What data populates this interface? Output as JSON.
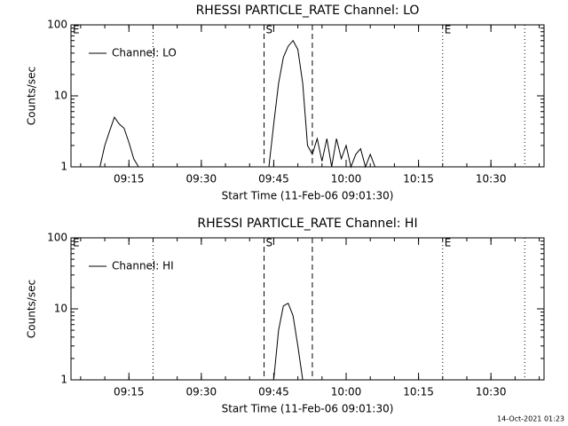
{
  "chart_data": [
    {
      "type": "line",
      "title": "RHESSI PARTICLE_RATE Channel: LO",
      "xlabel": "Start Time (11-Feb-06 09:01:30)",
      "ylabel": "Counts/sec",
      "log_y": true,
      "legend": "upper-left",
      "color": "#000000",
      "xlim": [
        "09:03",
        "10:41"
      ],
      "xticks": [
        "09:15",
        "09:30",
        "09:45",
        "10:00",
        "10:15",
        "10:30"
      ],
      "ylim": [
        1,
        100
      ],
      "yticks": [
        1,
        10,
        100
      ],
      "x": [
        "09:05",
        "09:06",
        "09:09",
        "09:10",
        "09:11",
        "09:12",
        "09:13",
        "09:14",
        "09:15",
        "09:16",
        "09:17",
        "09:18",
        "09:44",
        "09:45",
        "09:46",
        "09:47",
        "09:48",
        "09:49",
        "09:50",
        "09:51",
        "09:52",
        "09:53",
        "09:54",
        "09:55",
        "09:56",
        "09:57",
        "09:58",
        "09:59",
        "10:00",
        "10:01",
        "10:02",
        "10:03",
        "10:04",
        "10:05",
        "10:06"
      ],
      "series": [
        {
          "name": "Channel: LO",
          "color": "#000000",
          "values": [
            1.8,
            null,
            1,
            2,
            3.2,
            5,
            4,
            3.5,
            2.2,
            1.3,
            1,
            null,
            1,
            4,
            15,
            35,
            50,
            60,
            45,
            15,
            2,
            1.5,
            2.5,
            1.2,
            2.5,
            1,
            2.5,
            1.3,
            2,
            1,
            1.5,
            1.8,
            1,
            1.5,
            1
          ]
        }
      ],
      "markers": [
        {
          "x": "09:03",
          "style": "dotted",
          "label": "E"
        },
        {
          "x": "09:20",
          "style": "dotted"
        },
        {
          "x": "09:43",
          "style": "dashed",
          "label": "S"
        },
        {
          "x": "09:53",
          "style": "dashed"
        },
        {
          "x": "10:20",
          "style": "dotted",
          "label": "E"
        },
        {
          "x": "10:37",
          "style": "dotted"
        }
      ]
    },
    {
      "type": "line",
      "title": "RHESSI PARTICLE_RATE Channel: HI",
      "xlabel": "Start Time (11-Feb-06 09:01:30)",
      "ylabel": "Counts/sec",
      "log_y": true,
      "legend": "upper-left",
      "color": "#000000",
      "xlim": [
        "09:03",
        "10:41"
      ],
      "xticks": [
        "09:15",
        "09:30",
        "09:45",
        "10:00",
        "10:15",
        "10:30"
      ],
      "ylim": [
        1,
        100
      ],
      "yticks": [
        1,
        10,
        100
      ],
      "x": [
        "09:45",
        "09:46",
        "09:47",
        "09:48",
        "09:49",
        "09:50",
        "09:51"
      ],
      "series": [
        {
          "name": "Channel: HI",
          "color": "#000000",
          "values": [
            1,
            5,
            11,
            12,
            8,
            3,
            1
          ]
        }
      ],
      "markers": [
        {
          "x": "09:03",
          "style": "dotted",
          "label": "E"
        },
        {
          "x": "09:20",
          "style": "dotted"
        },
        {
          "x": "09:43",
          "style": "dashed",
          "label": "S"
        },
        {
          "x": "09:53",
          "style": "dashed"
        },
        {
          "x": "10:20",
          "style": "dotted",
          "label": "E"
        },
        {
          "x": "10:37",
          "style": "dotted"
        }
      ]
    }
  ],
  "footer": "14-Oct-2021 01:23"
}
